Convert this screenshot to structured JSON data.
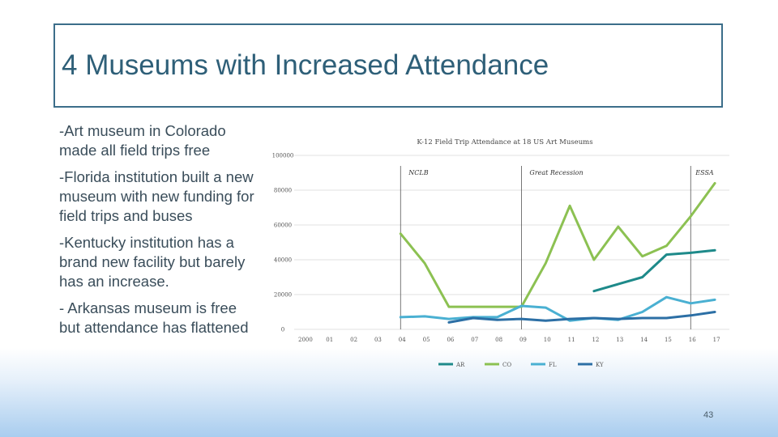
{
  "slide": {
    "title": "4 Museums with Increased Attendance",
    "bullets": [
      "-Art museum in Colorado made all field trips free",
      "-Florida institution built a new museum with new funding for field trips and buses",
      "-Kentucky institution has a brand new facility but barely has an increase.",
      "- Arkansas museum is free but attendance has flattened"
    ],
    "page_number": "43"
  },
  "chart_data": {
    "type": "line",
    "title": "K-12 Field Trip Attendance at 18 US Art Museums",
    "xlabel": "",
    "ylabel": "",
    "categories": [
      "2000",
      "01",
      "02",
      "03",
      "04",
      "05",
      "06",
      "07",
      "08",
      "09",
      "10",
      "11",
      "12",
      "13",
      "14",
      "15",
      "16",
      "17"
    ],
    "ylim": [
      0,
      100000
    ],
    "yticks": [
      "0",
      "20000",
      "40000",
      "60000",
      "80000",
      "100000"
    ],
    "grid": "horizontal",
    "legend": "bottom",
    "series": [
      {
        "name": "AR",
        "color": "#1e8a8a",
        "values": [
          null,
          null,
          null,
          null,
          null,
          null,
          null,
          null,
          null,
          null,
          null,
          null,
          22000,
          26000,
          30000,
          43000,
          44000,
          45500
        ]
      },
      {
        "name": "CO",
        "color": "#8cc152",
        "values": [
          null,
          null,
          null,
          null,
          55000,
          38000,
          13000,
          13000,
          13000,
          13000,
          38000,
          71000,
          40000,
          59000,
          42000,
          48000,
          65000,
          84000
        ]
      },
      {
        "name": "FL",
        "color": "#4ab0d2",
        "values": [
          null,
          null,
          null,
          null,
          7000,
          7500,
          6000,
          7000,
          7000,
          13500,
          12500,
          5000,
          6500,
          5500,
          10000,
          18500,
          15000,
          17000
        ]
      },
      {
        "name": "KY",
        "color": "#2c6fa5",
        "values": [
          null,
          null,
          null,
          null,
          null,
          null,
          4000,
          6500,
          5500,
          6000,
          5000,
          6000,
          6500,
          6000,
          6500,
          6500,
          8000,
          10000
        ]
      }
    ],
    "annotations": [
      {
        "label": "NCLB",
        "x": "04"
      },
      {
        "label": "Great Recession",
        "x": "09"
      },
      {
        "label": "ESSA",
        "x": "16"
      }
    ]
  }
}
